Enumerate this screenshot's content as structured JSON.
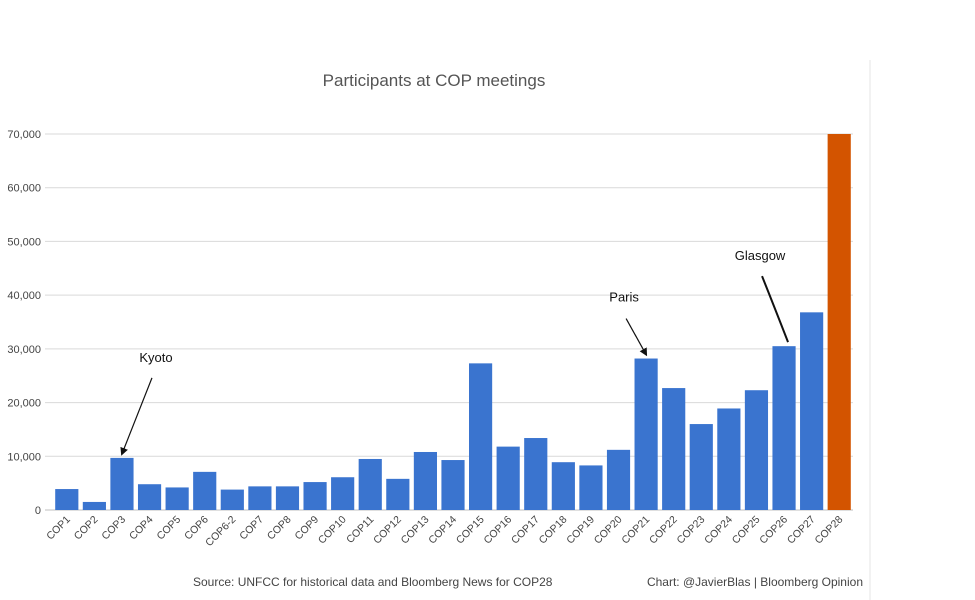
{
  "chart_data": {
    "type": "bar",
    "title": "Participants at COP meetings",
    "categories": [
      "COP1",
      "COP2",
      "COP3",
      "COP4",
      "COP5",
      "COP6",
      "COP6-2",
      "COP7",
      "COP8",
      "COP9",
      "COP10",
      "COP11",
      "COP12",
      "COP13",
      "COP14",
      "COP15",
      "COP16",
      "COP17",
      "COP18",
      "COP19",
      "COP20",
      "COP21",
      "COP22",
      "COP23",
      "COP24",
      "COP25",
      "COP26",
      "COP27",
      "COP28"
    ],
    "values": [
      3900,
      1500,
      9700,
      4800,
      4200,
      7100,
      3800,
      4400,
      4400,
      5200,
      6100,
      9500,
      5800,
      10800,
      9300,
      27300,
      11800,
      13400,
      8900,
      8300,
      11200,
      28200,
      22700,
      16000,
      18900,
      22300,
      30500,
      36800,
      70000
    ],
    "highlight_index": 28,
    "colors": {
      "bar": "#3a74cf",
      "highlight": "#d35400",
      "grid": "#d9d9d9"
    },
    "ylim": [
      0,
      70000
    ],
    "yticks": [
      0,
      10000,
      20000,
      30000,
      40000,
      50000,
      60000,
      70000
    ],
    "ytick_labels": [
      "0",
      "10,000",
      "20,000",
      "30,000",
      "40,000",
      "50,000",
      "60,000",
      "70,000"
    ],
    "grid": true,
    "annotations": [
      {
        "text": "Kyoto",
        "target": "COP3"
      },
      {
        "text": "Paris",
        "target": "COP21"
      },
      {
        "text": "Glasgow",
        "target": "COP26"
      }
    ],
    "source": "Source: UNFCC for historical data and Bloomberg News for COP28",
    "credit": "Chart: @JavierBlas | Bloomberg Opinion"
  }
}
